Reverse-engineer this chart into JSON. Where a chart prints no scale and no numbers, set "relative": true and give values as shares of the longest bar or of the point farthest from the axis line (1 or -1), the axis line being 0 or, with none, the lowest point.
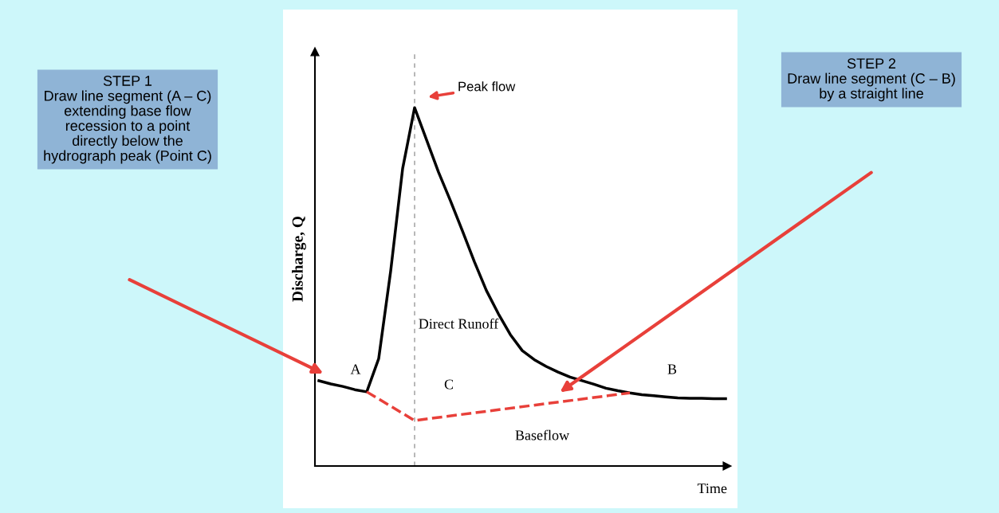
{
  "chart_data": {
    "type": "line",
    "relative": true,
    "xlabel": "Time",
    "ylabel": "Discharge, Q",
    "categories": [
      null,
      null,
      null,
      null,
      null,
      null,
      null,
      null,
      null,
      null,
      null,
      null,
      null,
      null,
      null,
      null,
      null,
      null,
      null,
      null,
      null,
      null,
      null,
      null,
      null,
      null,
      null,
      null,
      null,
      null,
      null,
      null,
      null,
      null,
      null
    ],
    "series": [
      {
        "color": "#000000",
        "line_style": "solid",
        "values": [
          0.238,
          0.229,
          0.222,
          0.213,
          0.207,
          0.3,
          0.544,
          0.83,
          1.0,
          0.91,
          0.82,
          0.74,
          0.656,
          0.57,
          0.49,
          0.425,
          0.367,
          0.322,
          0.297,
          0.278,
          0.262,
          0.248,
          0.238,
          0.228,
          0.217,
          0.21,
          0.204,
          0.199,
          0.196,
          0.193,
          0.19,
          0.189,
          0.189,
          0.188,
          0.188
        ]
      },
      {
        "color": "#e8403a",
        "line_style": "dashed",
        "values": [
          null,
          null,
          null,
          null,
          0.207,
          null,
          null,
          null,
          0.127,
          null,
          null,
          null,
          null,
          null,
          null,
          null,
          null,
          null,
          null,
          null,
          null,
          null,
          null,
          null,
          null,
          null,
          0.204,
          null,
          null,
          null,
          null,
          null,
          null,
          null,
          null
        ]
      }
    ],
    "annotations": [
      "STEP 1\nDraw line segment (A – C)\nextending base flow\nrecession to a point\ndirectly below the\nhydrograph peak (Point C)",
      "STEP 2\nDraw line segment (C – B)\nby a straight line",
      "Peak flow",
      "Direct Runoff",
      "Baseflow",
      "A",
      "B",
      "C"
    ],
    "grid": false,
    "legend": false
  }
}
